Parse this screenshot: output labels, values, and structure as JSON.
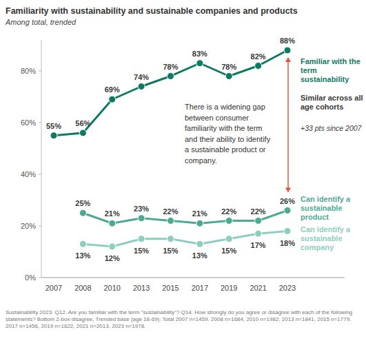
{
  "chart_data": {
    "type": "line",
    "title": "Familiarity with sustainability and sustainable companies and products",
    "subtitle": "Among total, trended",
    "categories": [
      "2007",
      "2008",
      "2010",
      "2013",
      "2015",
      "2017",
      "2019",
      "2021",
      "2023"
    ],
    "series": [
      {
        "name": "Familiar with the term sustainability",
        "color": "#0f7a62",
        "values": [
          55,
          56,
          69,
          74,
          78,
          83,
          78,
          82,
          88
        ],
        "value_labels": [
          "55%",
          "56%",
          "69%",
          "74%",
          "78%",
          "83%",
          "78%",
          "82%",
          "88%"
        ]
      },
      {
        "name": "Can identify a sustainable product",
        "color": "#4caa93",
        "values": [
          null,
          25,
          21,
          23,
          22,
          21,
          22,
          22,
          26
        ],
        "value_labels": [
          null,
          "25%",
          "21%",
          "23%",
          "22%",
          "21%",
          "22%",
          "22%",
          "26%"
        ]
      },
      {
        "name": "Can identify a sustainable company",
        "color": "#8dcfbd",
        "values": [
          null,
          13,
          12,
          15,
          15,
          13,
          15,
          17,
          18
        ],
        "value_labels": [
          null,
          "13%",
          "12%",
          "15%",
          "15%",
          "13%",
          "15%",
          "17%",
          "18%"
        ]
      }
    ],
    "ylim": [
      0,
      92
    ],
    "yticks": [
      {
        "value": 0,
        "label": "0%"
      },
      {
        "value": 20,
        "label": "20%"
      },
      {
        "value": 40,
        "label": "40%"
      },
      {
        "value": 60,
        "label": "60%"
      },
      {
        "value": 80,
        "label": "80%"
      }
    ],
    "grid": false,
    "data_labels": true,
    "marker": "circle",
    "annotations": [
      "Similar across all age cohorts",
      "+33 pts since 2007",
      "There is a widening gap between consumer familiarity with the term and their ability to identify a sustainable product or company."
    ],
    "footnote": "Sustainability 2023. Q12. Are you familiar with the term \"sustainability\"? Q14. How strongly do you agree or disagree with each of the following statements? Bottom 2-box disagree, Trended base (age 18-69): Total 2007 n=1459, 2008 n=1684, 2010 n=1982, 2013 n=1841, 2015 n=1779, 2017 n=1456, 2019 n=1622, 2021 n=2013, 2023 n=1978."
  }
}
